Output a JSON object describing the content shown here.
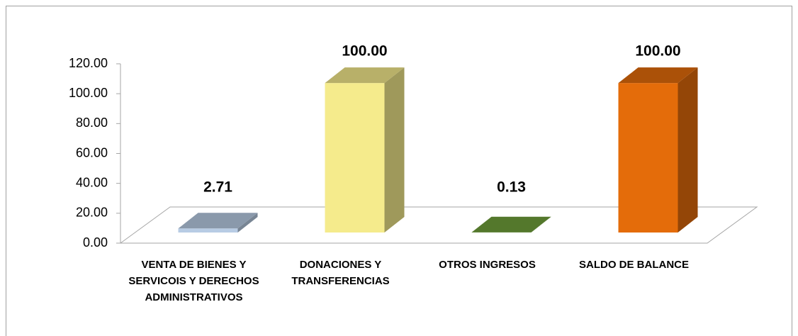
{
  "chart_data": {
    "type": "bar3d",
    "categories": [
      "VENTA DE BIENES Y SERVICOIS Y DERECHOS ADMINISTRATIVOS",
      "DONACIONES Y TRANSFERENCIAS",
      "OTROS INGRESOS",
      "SALDO DE BALANCE"
    ],
    "values": [
      2.71,
      100,
      0.13,
      100
    ],
    "value_labels": [
      "2.71",
      "100.00",
      "0.13",
      "100.00"
    ],
    "colors": [
      "#b8cce4",
      "#f5eb8c",
      "#70a03a",
      "#e46c0a"
    ],
    "ylim": [
      0,
      120
    ],
    "yticks": [
      {
        "value": 0,
        "label": "0.00"
      },
      {
        "value": 20,
        "label": "20.00"
      },
      {
        "value": 40,
        "label": "40.00"
      },
      {
        "value": 60,
        "label": "60.00"
      },
      {
        "value": 80,
        "label": "80.00"
      },
      {
        "value": 100,
        "label": "100.00"
      },
      {
        "value": 120,
        "label": "120.00"
      }
    ]
  }
}
